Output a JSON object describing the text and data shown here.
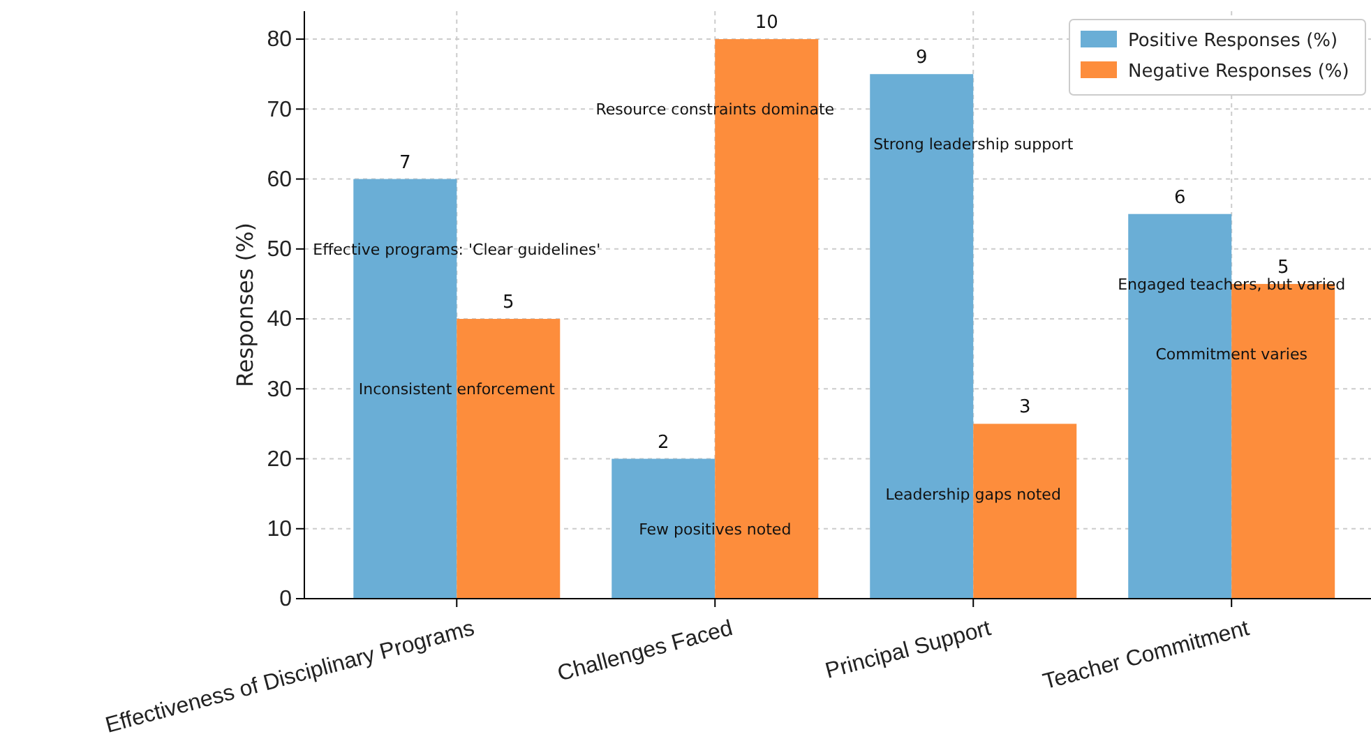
{
  "chart_data": {
    "type": "bar",
    "categories": [
      "Effectiveness of Disciplinary Programs",
      "Challenges Faced",
      "Principal Support",
      "Teacher Commitment"
    ],
    "series": [
      {
        "name": "Positive Responses (%)",
        "color": "#6aaed6",
        "values": [
          60,
          20,
          75,
          55
        ]
      },
      {
        "name": "Negative Responses (%)",
        "color": "#fd8d3c",
        "values": [
          40,
          80,
          25,
          45
        ]
      }
    ],
    "ylabel": "Responses (%)",
    "ylim": [
      0,
      84
    ],
    "yticks": [
      0,
      10,
      20,
      30,
      40,
      50,
      60,
      70,
      80
    ],
    "grid": true,
    "legend": "top right",
    "annotations": [
      {
        "text": "7",
        "x": "Effectiveness of Disciplinary Programs",
        "y": 60
      },
      {
        "text": "5",
        "x": "Effectiveness of Disciplinary Programs",
        "y": 40
      },
      {
        "text": "2",
        "x": "Challenges Faced",
        "y": 20
      },
      {
        "text": "10",
        "x": "Challenges Faced",
        "y": 80
      },
      {
        "text": "9",
        "x": "Principal Support",
        "y": 75
      },
      {
        "text": "3",
        "x": "Principal Support",
        "y": 25
      },
      {
        "text": "6",
        "x": "Teacher Commitment",
        "y": 55
      },
      {
        "text": "5",
        "x": "Teacher Commitment",
        "y": 45
      },
      {
        "text": "Effective programs: 'Clear guidelines'",
        "x": "Effectiveness of Disciplinary Programs",
        "y": 50
      },
      {
        "text": "Inconsistent enforcement",
        "x": "Effectiveness of Disciplinary Programs",
        "y": 30
      },
      {
        "text": "Few positives noted",
        "x": "Challenges Faced",
        "y": 10
      },
      {
        "text": "Resource constraints dominate",
        "x": "Challenges Faced",
        "y": 70
      },
      {
        "text": "Strong leadership support",
        "x": "Principal Support",
        "y": 65
      },
      {
        "text": "Leadership gaps noted",
        "x": "Principal Support",
        "y": 15
      },
      {
        "text": "Engaged teachers, but varied",
        "x": "Teacher Commitment",
        "y": 45
      },
      {
        "text": "Commitment varies",
        "x": "Teacher Commitment",
        "y": 35
      }
    ]
  }
}
